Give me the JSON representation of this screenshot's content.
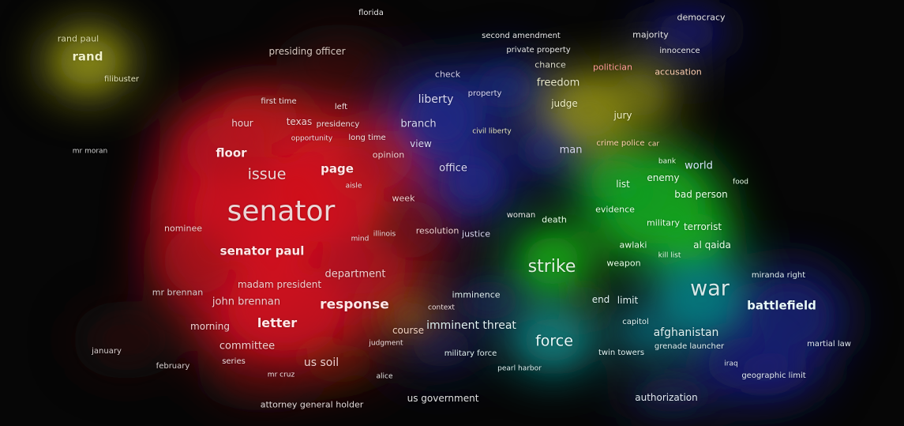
{
  "terms": [
    {
      "text": "florida",
      "size": 10,
      "color": "#e6e6e6"
    },
    {
      "text": "democracy",
      "size": 11,
      "color": "#e6e6e6"
    },
    {
      "text": "rand paul",
      "size": 11,
      "color": "#d8d8a8"
    },
    {
      "text": "rand",
      "size": 15,
      "color": "#f0f0c8",
      "weight": "bold"
    },
    {
      "text": "filibuster",
      "size": 10,
      "color": "#e0e0b8"
    },
    {
      "text": "presiding officer",
      "size": 12,
      "color": "#d8c8c0"
    },
    {
      "text": "second amendment",
      "size": 10,
      "color": "#e6e6e6"
    },
    {
      "text": "majority",
      "size": 11,
      "color": "#e6e6e6"
    },
    {
      "text": "private property",
      "size": 10,
      "color": "#e6e6e6"
    },
    {
      "text": "innocence",
      "size": 10,
      "color": "#e6e6e6"
    },
    {
      "text": "chance",
      "size": 11,
      "color": "#d8d8c8"
    },
    {
      "text": "politician",
      "size": 11,
      "color": "#ff9a9a"
    },
    {
      "text": "accusation",
      "size": 11,
      "color": "#ffd0b0"
    },
    {
      "text": "check",
      "size": 11,
      "color": "#d0d0e8"
    },
    {
      "text": "freedom",
      "size": 13,
      "color": "#e8e8c8"
    },
    {
      "text": "liberty",
      "size": 14,
      "color": "#d8d8f0"
    },
    {
      "text": "property",
      "size": 10,
      "color": "#d8d8f0"
    },
    {
      "text": "judge",
      "size": 12,
      "color": "#f0f0c8"
    },
    {
      "text": "first time",
      "size": 10,
      "color": "#f0e0e0"
    },
    {
      "text": "left",
      "size": 10,
      "color": "#f0e0e0"
    },
    {
      "text": "jury",
      "size": 12,
      "color": "#f0f0c8"
    },
    {
      "text": "hour",
      "size": 12,
      "color": "#f0d0d0"
    },
    {
      "text": "texas",
      "size": 12,
      "color": "#f0d0d0"
    },
    {
      "text": "presidency",
      "size": 10,
      "color": "#f0e0e0"
    },
    {
      "text": "branch",
      "size": 13,
      "color": "#d8d8f0"
    },
    {
      "text": "civil liberty",
      "size": 9,
      "color": "#e8e8c0"
    },
    {
      "text": "opportunity",
      "size": 9,
      "color": "#f0e0e0"
    },
    {
      "text": "long time",
      "size": 10,
      "color": "#f0e0e0"
    },
    {
      "text": "view",
      "size": 12,
      "color": "#d8d8f0"
    },
    {
      "text": "crime police",
      "size": 10,
      "color": "#ffd0b0"
    },
    {
      "text": "car",
      "size": 9,
      "color": "#ffd0b0"
    },
    {
      "text": "mr moran",
      "size": 9,
      "color": "#d0d0d0"
    },
    {
      "text": "floor",
      "size": 15,
      "color": "#ffe8e8",
      "weight": "bold"
    },
    {
      "text": "opinion",
      "size": 11,
      "color": "#f0d0d0"
    },
    {
      "text": "man",
      "size": 13,
      "color": "#d8d8f0"
    },
    {
      "text": "bank",
      "size": 9,
      "color": "#e8ffe8"
    },
    {
      "text": "world",
      "size": 13,
      "color": "#d8e8ff"
    },
    {
      "text": "page",
      "size": 15,
      "color": "#ffe8e8",
      "weight": "bold"
    },
    {
      "text": "office",
      "size": 13,
      "color": "#d8d8f0"
    },
    {
      "text": "issue",
      "size": 19,
      "color": "#f0d8d8"
    },
    {
      "text": "enemy",
      "size": 12,
      "color": "#e8ffe8"
    },
    {
      "text": "food",
      "size": 9,
      "color": "#e8ffe8"
    },
    {
      "text": "aisle",
      "size": 9,
      "color": "#f0e0e0"
    },
    {
      "text": "list",
      "size": 12,
      "color": "#e8ffe8"
    },
    {
      "text": "bad person",
      "size": 12,
      "color": "#e8ffe8"
    },
    {
      "text": "week",
      "size": 11,
      "color": "#f0d0d0"
    },
    {
      "text": "senator",
      "size": 36,
      "color": "#ecd6d6"
    },
    {
      "text": "evidence",
      "size": 11,
      "color": "#e8ffe8"
    },
    {
      "text": "woman",
      "size": 10,
      "color": "#e6e6e6"
    },
    {
      "text": "death",
      "size": 11,
      "color": "#e8ffe8"
    },
    {
      "text": "military",
      "size": 11,
      "color": "#e8ffe8"
    },
    {
      "text": "terrorist",
      "size": 12,
      "color": "#e8ffe8"
    },
    {
      "text": "nominee",
      "size": 11,
      "color": "#f0d0d0"
    },
    {
      "text": "resolution",
      "size": 11,
      "color": "#f0d0d0"
    },
    {
      "text": "justice",
      "size": 11,
      "color": "#d8d8f0"
    },
    {
      "text": "illinois",
      "size": 9,
      "color": "#f0e0e0"
    },
    {
      "text": "mind",
      "size": 9,
      "color": "#f0e0e0"
    },
    {
      "text": "awlaki",
      "size": 11,
      "color": "#e8ffe8"
    },
    {
      "text": "al qaida",
      "size": 12,
      "color": "#e8ffe8"
    },
    {
      "text": "senator paul",
      "size": 15,
      "color": "#ffe8e8",
      "weight": "bold"
    },
    {
      "text": "kill list",
      "size": 9,
      "color": "#e8ffe8"
    },
    {
      "text": "weapon",
      "size": 11,
      "color": "#e8ffe8"
    },
    {
      "text": "strike",
      "size": 22,
      "color": "#e0f0e0"
    },
    {
      "text": "department",
      "size": 13,
      "color": "#f0d0d0"
    },
    {
      "text": "miranda right",
      "size": 10,
      "color": "#e0f0f0"
    },
    {
      "text": "madam president",
      "size": 12,
      "color": "#f0d0d0"
    },
    {
      "text": "war",
      "size": 27,
      "color": "#d8e8e8"
    },
    {
      "text": "mr brennan",
      "size": 11,
      "color": "#d8d0d0"
    },
    {
      "text": "imminence",
      "size": 11,
      "color": "#e0f0f0"
    },
    {
      "text": "end",
      "size": 12,
      "color": "#e0f0f0"
    },
    {
      "text": "limit",
      "size": 12,
      "color": "#e0f0f0"
    },
    {
      "text": "john brennan",
      "size": 13,
      "color": "#f0d0d0"
    },
    {
      "text": "response",
      "size": 17,
      "color": "#ffe8e8",
      "weight": "bold"
    },
    {
      "text": "battlefield",
      "size": 15,
      "color": "#e8f8f8",
      "weight": "bold"
    },
    {
      "text": "context",
      "size": 9,
      "color": "#f0e0e0"
    },
    {
      "text": "capitol",
      "size": 10,
      "color": "#e0f0f0"
    },
    {
      "text": "morning",
      "size": 12,
      "color": "#f0d0d0"
    },
    {
      "text": "letter",
      "size": 16,
      "color": "#ffe8e8",
      "weight": "bold"
    },
    {
      "text": "course",
      "size": 12,
      "color": "#f0d0c0"
    },
    {
      "text": "imminent threat",
      "size": 14,
      "color": "#e0f0f0"
    },
    {
      "text": "afghanistan",
      "size": 14,
      "color": "#e0f0f0"
    },
    {
      "text": "force",
      "size": 19,
      "color": "#e8f8f8"
    },
    {
      "text": "judgment",
      "size": 9,
      "color": "#f0e0e0"
    },
    {
      "text": "martial law",
      "size": 10,
      "color": "#e0e8f0"
    },
    {
      "text": "grenade launcher",
      "size": 10,
      "color": "#e0f0f0"
    },
    {
      "text": "committee",
      "size": 13,
      "color": "#f0d0d0"
    },
    {
      "text": "january",
      "size": 10,
      "color": "#d8d0d0"
    },
    {
      "text": "military force",
      "size": 10,
      "color": "#e0f0f0"
    },
    {
      "text": "twin towers",
      "size": 10,
      "color": "#e0f0f0"
    },
    {
      "text": "series",
      "size": 10,
      "color": "#f0e0e0"
    },
    {
      "text": "us soil",
      "size": 14,
      "color": "#f0d0d0"
    },
    {
      "text": "iraq",
      "size": 9,
      "color": "#e0e8f0"
    },
    {
      "text": "february",
      "size": 10,
      "color": "#d8d0d0"
    },
    {
      "text": "pearl harbor",
      "size": 9,
      "color": "#e0f0f0"
    },
    {
      "text": "geographic limit",
      "size": 10,
      "color": "#e0e8f0"
    },
    {
      "text": "mr cruz",
      "size": 9,
      "color": "#f0e0e0"
    },
    {
      "text": "alice",
      "size": 9,
      "color": "#e6e6e6"
    },
    {
      "text": "us government",
      "size": 12,
      "color": "#e0e0e0"
    },
    {
      "text": "authorization",
      "size": 12,
      "color": "#e0e8f0"
    },
    {
      "text": "attorney general holder",
      "size": 11,
      "color": "#e0d8d8"
    }
  ],
  "clusters": [
    {
      "color": "#d0101e"
    },
    {
      "color": "#d0101e"
    },
    {
      "color": "#d0101e"
    },
    {
      "color": "#b0101e"
    },
    {
      "color": "#b0101e"
    },
    {
      "color": "#a0101e"
    },
    {
      "color": "#a01620"
    },
    {
      "color": "#c01a1a"
    },
    {
      "color": "#6a1418"
    },
    {
      "color": "#8a8a18"
    },
    {
      "color": "#8c8a12"
    },
    {
      "color": "#7a7a10"
    },
    {
      "color": "#222a8a"
    },
    {
      "color": "#20288a"
    },
    {
      "color": "#1e2a80"
    },
    {
      "color": "#1a2a88"
    },
    {
      "color": "#18a020"
    },
    {
      "color": "#14a018"
    },
    {
      "color": "#12a820"
    },
    {
      "color": "#109a28"
    },
    {
      "color": "#0c7878"
    },
    {
      "color": "#0c7a80"
    },
    {
      "color": "#0c6c7c"
    },
    {
      "color": "#1a2070"
    },
    {
      "color": "#1a2070"
    },
    {
      "color": "#1a2070"
    },
    {
      "color": "#1a2070"
    },
    {
      "color": "#203068"
    },
    {
      "color": "#1e286c"
    },
    {
      "color": "#5a1a10"
    },
    {
      "color": "#3a1410"
    },
    {
      "color": "#4a1410"
    },
    {
      "color": "#5a1818"
    },
    {
      "color": "#8a5a10"
    },
    {
      "color": "#304a18"
    },
    {
      "color": "#1e2a60"
    }
  ]
}
